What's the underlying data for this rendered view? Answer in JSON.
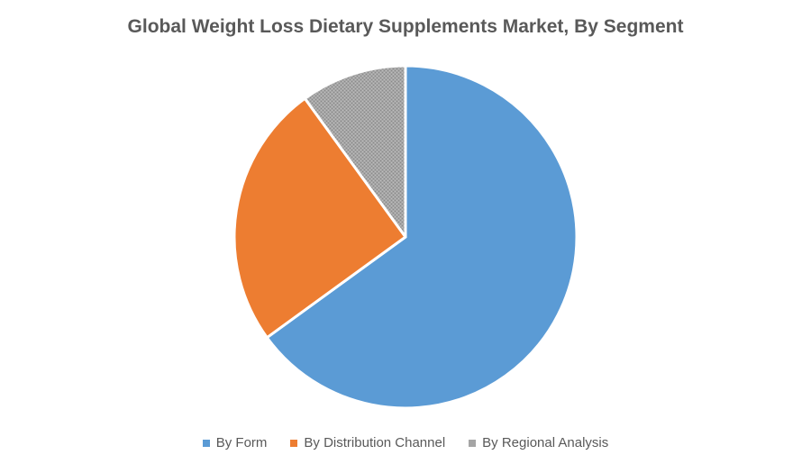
{
  "chart_data": {
    "type": "pie",
    "title": "Global Weight Loss Dietary Supplements Market, By Segment",
    "categories": [
      "By Form",
      "By Distribution Channel",
      "By Regional Analysis"
    ],
    "values": [
      65,
      25,
      10
    ],
    "colors": [
      "#5B9BD5",
      "#ED7D31",
      "#A5A5A5"
    ],
    "legend_position": "bottom"
  }
}
